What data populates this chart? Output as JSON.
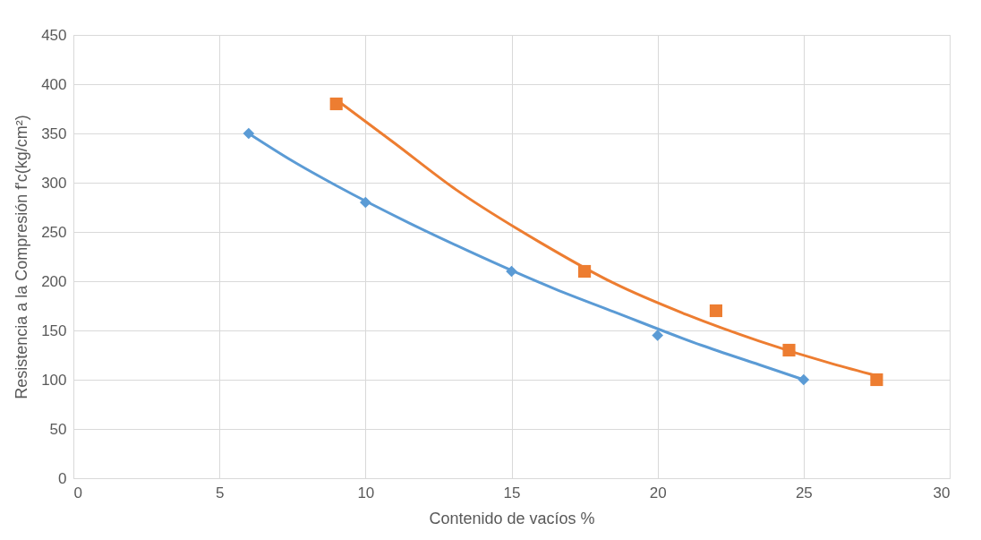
{
  "chart_data": {
    "type": "scatter",
    "xlabel": "Contenido de vacíos %",
    "ylabel": "Resistencia a la Compresión f'c(kg/cm²)",
    "xlim": [
      0,
      30
    ],
    "xticks": [
      0,
      5,
      10,
      15,
      20,
      25,
      30
    ],
    "ylim": [
      0,
      450
    ],
    "yticks": [
      0,
      50,
      100,
      150,
      200,
      250,
      300,
      350,
      400,
      450
    ],
    "grid": true,
    "legend": false,
    "series": [
      {
        "type": "line",
        "color": "#5b9bd5",
        "marker": "none",
        "line_style": "solid",
        "x": [
          6,
          7.5,
          9,
          11.5,
          13.5,
          16.5,
          18.5,
          21.5,
          23.5,
          25
        ],
        "values": [
          350,
          322,
          297,
          259,
          231,
          192,
          169,
          135,
          115,
          100
        ]
      },
      {
        "type": "line",
        "color": "#ed7d31",
        "marker": "none",
        "line_style": "solid",
        "x": [
          9.1,
          11,
          13,
          16,
          18.5,
          21,
          23.5,
          26,
          27.5
        ],
        "values": [
          382,
          340,
          295,
          239,
          198,
          166,
          139,
          116,
          104
        ]
      },
      {
        "color": "#5b9bd5",
        "marker": "diamond",
        "x": [
          6,
          10,
          15,
          20,
          25
        ],
        "values": [
          350,
          280,
          210,
          145,
          100
        ]
      },
      {
        "color": "#ed7d31",
        "marker": "square",
        "x": [
          9,
          17.5,
          22,
          24.5,
          27.5
        ],
        "values": [
          380,
          210,
          170,
          130,
          100
        ]
      }
    ]
  }
}
